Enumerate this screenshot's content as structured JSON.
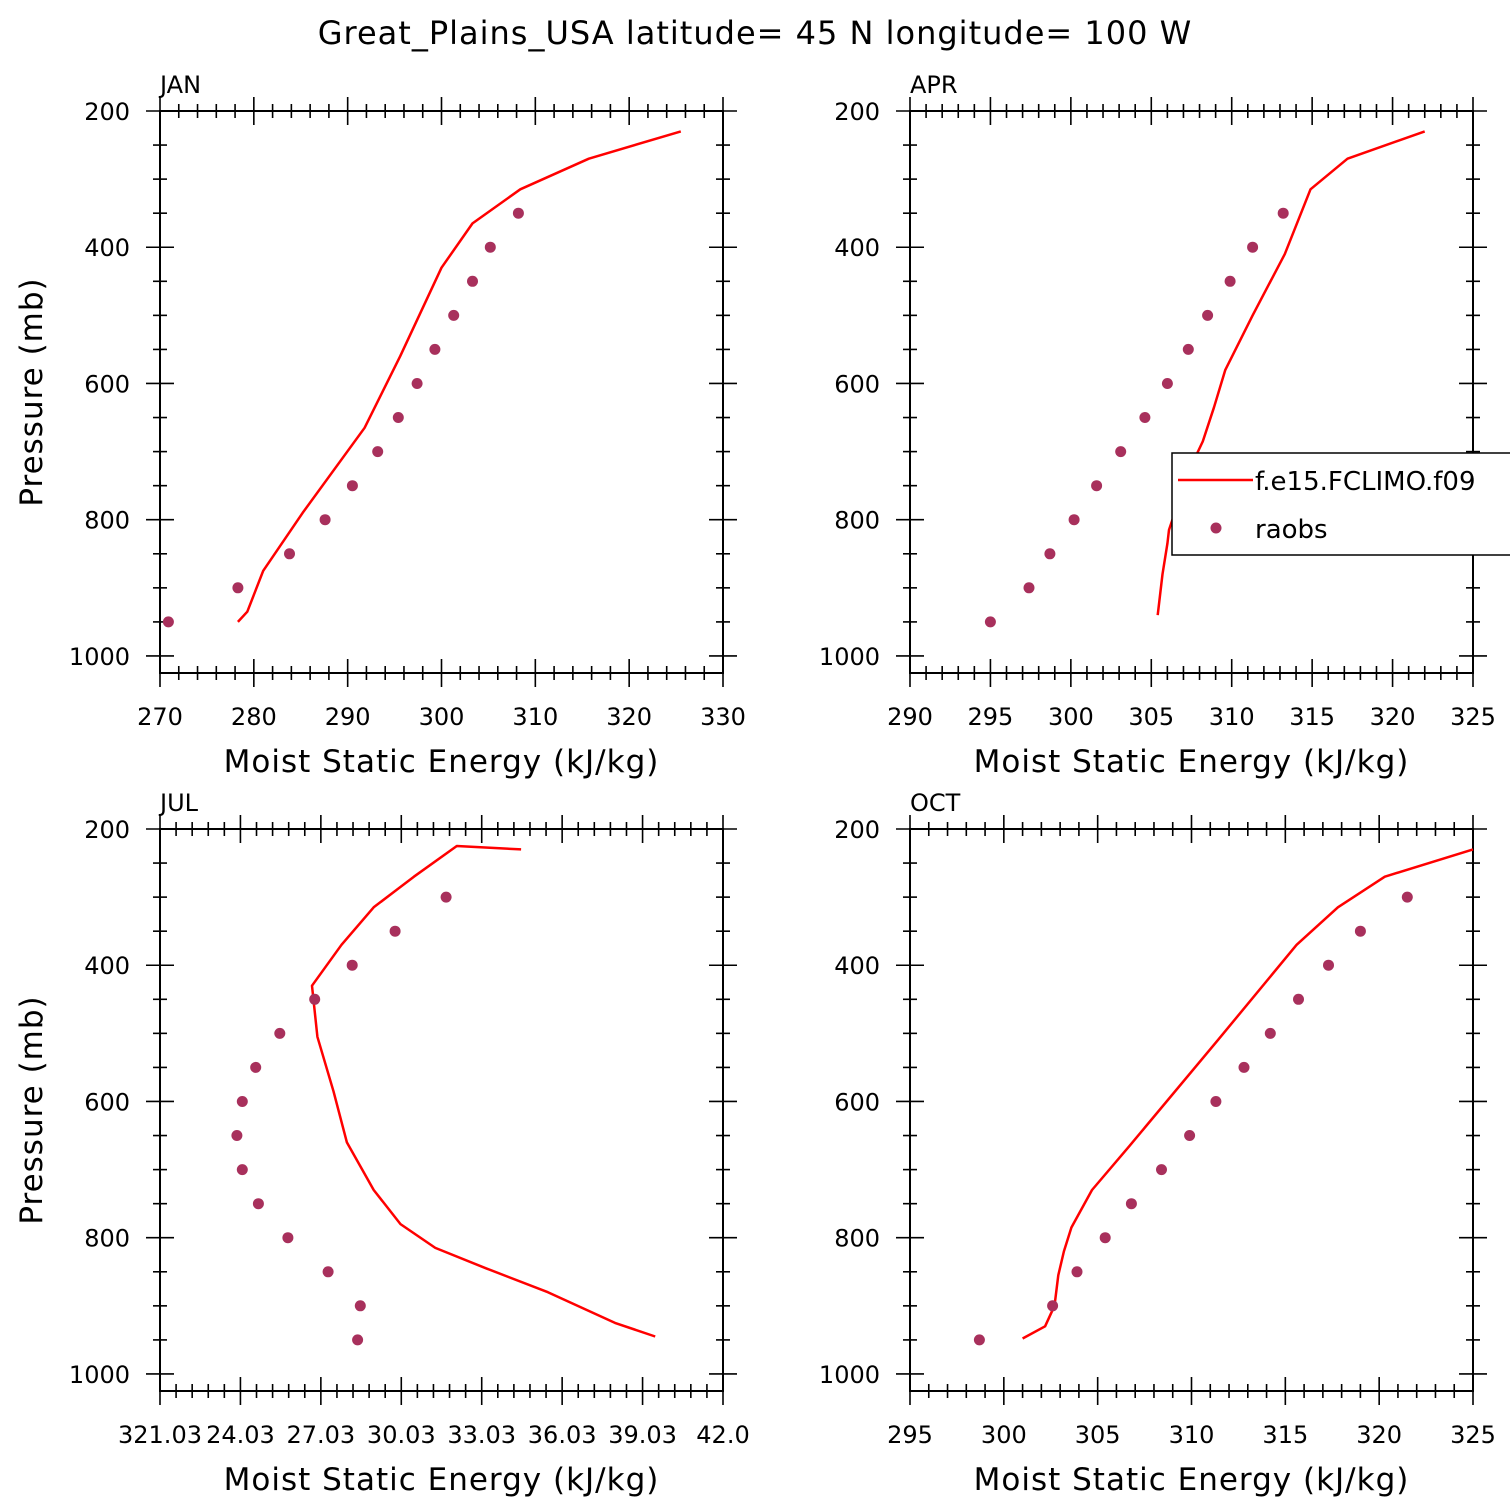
{
  "title": "Great_Plains_USA  latitude= 45 N longitude= 100 W",
  "colors": {
    "model": "#ff0000",
    "obs": "#a8305c",
    "axis": "#000000"
  },
  "legend": {
    "model_label": "f.e15.FCLIMO.f09",
    "obs_label": "raobs",
    "placement": "right-middle (APR panel)"
  },
  "chart_data": [
    {
      "type": "line",
      "panel_label": "JAN",
      "xlabel": "Moist Static Energy (kJ/kg)",
      "ylabel": "Pressure (mb)",
      "xlim": [
        270,
        330
      ],
      "ylim": [
        1025,
        200
      ],
      "x_ticks": [
        "270",
        "280",
        "290",
        "300",
        "310",
        "320",
        "330"
      ],
      "y_ticks": [
        "200",
        "400",
        "600",
        "800",
        "1000"
      ],
      "series": [
        {
          "name": "f.e15.FCLIMO.f09",
          "style": "line",
          "x": [
            278.3,
            279.3,
            281.0,
            285.2,
            291.8,
            295.6,
            300.0,
            303.3,
            308.4,
            315.7,
            325.5
          ],
          "y": [
            950,
            935,
            875,
            790,
            665,
            560,
            430,
            365,
            315,
            270,
            230
          ]
        },
        {
          "name": "raobs",
          "style": "points",
          "x": [
            270.9,
            278.3,
            283.8,
            287.6,
            290.5,
            293.2,
            295.4,
            297.4,
            299.3,
            301.3,
            303.3,
            305.2,
            308.2
          ],
          "y": [
            950,
            900,
            850,
            800,
            750,
            700,
            650,
            600,
            550,
            500,
            450,
            400,
            350
          ]
        }
      ]
    },
    {
      "type": "line",
      "panel_label": "APR",
      "xlabel": "Moist Static Energy (kJ/kg)",
      "ylabel": "",
      "xlim": [
        290,
        325
      ],
      "ylim": [
        1025,
        200
      ],
      "x_ticks": [
        "290",
        "295",
        "300",
        "305",
        "310",
        "315",
        "320",
        "325"
      ],
      "y_ticks": [
        "200",
        "400",
        "600",
        "800",
        "1000"
      ],
      "series": [
        {
          "name": "f.e15.FCLIMO.f09",
          "style": "line",
          "x": [
            305.4,
            305.7,
            306.0,
            306.1,
            306.6,
            307.4,
            308.2,
            308.9,
            309.6,
            311.3,
            313.3,
            314.9,
            317.2,
            322.0
          ],
          "y": [
            940,
            880,
            835,
            815,
            780,
            725,
            685,
            635,
            580,
            500,
            410,
            315,
            270,
            230
          ]
        },
        {
          "name": "raobs",
          "style": "points",
          "x": [
            295.0,
            297.4,
            298.7,
            300.2,
            301.6,
            303.1,
            304.6,
            306.0,
            307.3,
            308.5,
            309.9,
            311.3,
            313.2
          ],
          "y": [
            950,
            900,
            850,
            800,
            750,
            700,
            650,
            600,
            550,
            500,
            450,
            400,
            350
          ]
        }
      ]
    },
    {
      "type": "line",
      "panel_label": "JUL",
      "xlabel": "Moist Static Energy (kJ/kg)",
      "ylabel": "Pressure (mb)",
      "xlim": [
        321.03,
        342.03
      ],
      "ylim": [
        1025,
        200
      ],
      "x_ticks": [
        "321.03",
        "24.03",
        "27.03",
        "30.03",
        "33.03",
        "36.03",
        "39.03",
        "42.0"
      ],
      "series": [
        {
          "name": "f.e15.FCLIMO.f09",
          "style": "line",
          "x": [
            339.5,
            338.0,
            335.5,
            333.2,
            331.3,
            330.0,
            329.0,
            328.0,
            327.5,
            326.9,
            326.7,
            327.8,
            329.0,
            330.5,
            332.1,
            334.5
          ],
          "y": [
            945,
            925,
            880,
            845,
            815,
            780,
            730,
            660,
            585,
            505,
            430,
            370,
            315,
            270,
            225,
            230
          ]
        },
        {
          "name": "raobs",
          "style": "points",
          "x": [
            328.4,
            328.5,
            327.3,
            325.8,
            324.7,
            324.1,
            323.9,
            324.1,
            324.6,
            325.5,
            326.8,
            328.2,
            329.8,
            331.7
          ],
          "y": [
            950,
            900,
            850,
            800,
            750,
            700,
            650,
            600,
            550,
            500,
            450,
            400,
            350,
            300
          ]
        }
      ]
    },
    {
      "type": "line",
      "panel_label": "OCT",
      "xlabel": "Moist Static Energy (kJ/kg)",
      "ylabel": "",
      "xlim": [
        295,
        325
      ],
      "ylim": [
        1025,
        200
      ],
      "x_ticks": [
        "295",
        "300",
        "305",
        "310",
        "315",
        "320",
        "325"
      ],
      "y_ticks": [
        "200",
        "400",
        "600",
        "800",
        "1000"
      ],
      "series": [
        {
          "name": "f.e15.FCLIMO.f09",
          "style": "line",
          "x": [
            301.0,
            302.2,
            302.7,
            302.9,
            303.2,
            303.6,
            304.7,
            306.7,
            311.4,
            315.6,
            317.8,
            320.3,
            325.0
          ],
          "y": [
            948,
            930,
            900,
            855,
            820,
            785,
            730,
            665,
            510,
            370,
            315,
            270,
            230
          ]
        },
        {
          "name": "raobs",
          "style": "points",
          "x": [
            298.7,
            302.6,
            303.9,
            305.4,
            306.8,
            308.4,
            309.9,
            311.3,
            312.8,
            314.2,
            315.7,
            317.3,
            319.0,
            321.5
          ],
          "y": [
            950,
            900,
            850,
            800,
            750,
            700,
            650,
            600,
            550,
            500,
            450,
            400,
            350,
            300
          ]
        }
      ]
    }
  ]
}
